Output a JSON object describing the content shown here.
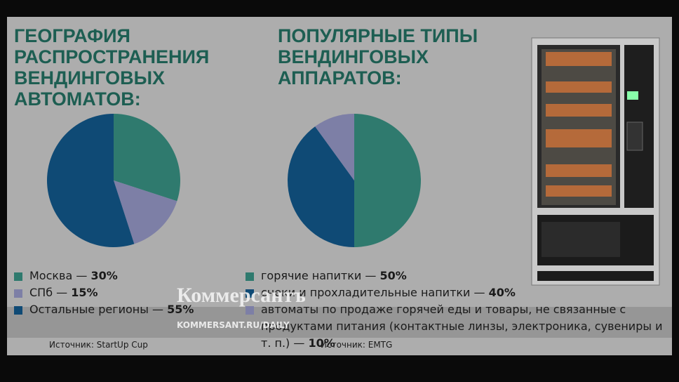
{
  "chart_data": [
    {
      "type": "pie",
      "title": "ГЕОГРАФИЯ РАСПРОСТРАНЕНИЯ ВЕНДИНГОВЫХ АВТОМАТОВ:",
      "categories": [
        "Москва",
        "СПб",
        "Остальные регионы"
      ],
      "values": [
        30,
        15,
        55
      ],
      "value_labels": [
        "30%",
        "15%",
        "55%"
      ],
      "colors": [
        "#2f7a6e",
        "#7d7fa6",
        "#0f4a75"
      ],
      "separator": "—",
      "source": "Источник: StartUp Cup"
    },
    {
      "type": "pie",
      "title": "ПОПУЛЯРНЫЕ ТИПЫ ВЕНДИНГОВЫХ АППАРАТОВ:",
      "categories": [
        "горячие напитки",
        "снеки и прохладительные напитки",
        "автоматы по продаже горячей еды и товары, не связанные с продуктами питания (контактные линзы, электроника, сувениры и т. п.)"
      ],
      "values": [
        50,
        40,
        10
      ],
      "value_labels": [
        "50%",
        "40%",
        "10%"
      ],
      "colors": [
        "#2f7a6e",
        "#0f4a75",
        "#7d7fa6"
      ],
      "separator": "—",
      "source": "Источник: EMTG"
    }
  ],
  "watermark": {
    "brand": "Коммерсантъ",
    "url": "KOMMERSANT.RU/DAILY"
  }
}
